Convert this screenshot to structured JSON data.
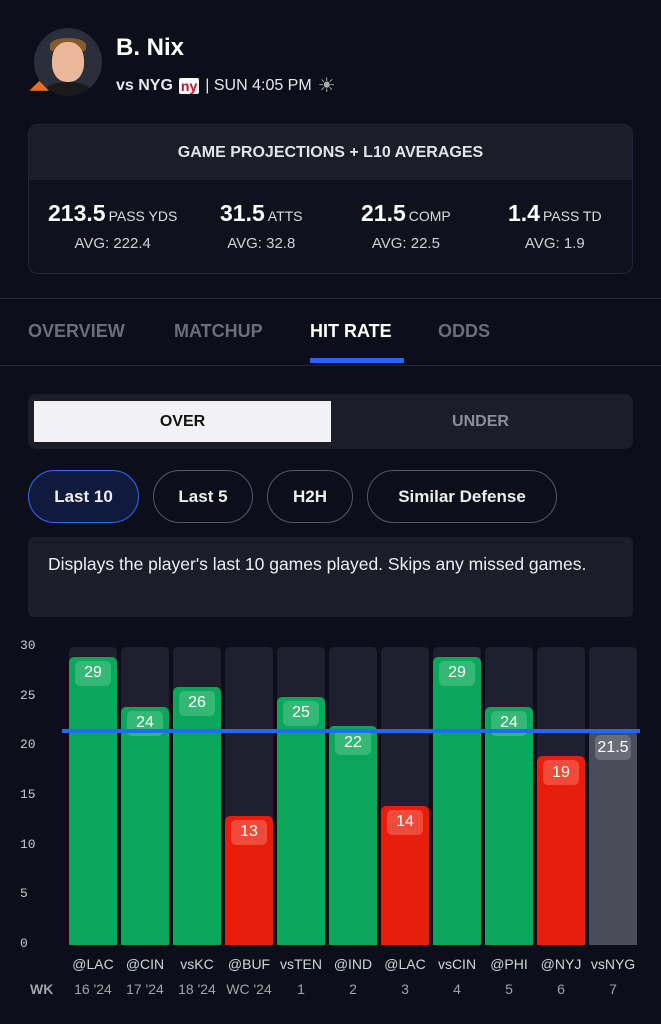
{
  "player": {
    "name": "B. Nix",
    "team_logo": "broncos-logo",
    "matchup": "vs NYG",
    "opp_logo": "ny",
    "game_time": "| SUN 4:05 PM",
    "weather_icon": "sun-icon"
  },
  "projections": {
    "title": "GAME PROJECTIONS + L10 AVERAGES",
    "stats": [
      {
        "value": "213.5",
        "unit": "PASS YDS",
        "avg": "AVG: 222.4"
      },
      {
        "value": "31.5",
        "unit": "ATTS",
        "avg": "AVG: 32.8"
      },
      {
        "value": "21.5",
        "unit": "COMP",
        "avg": "AVG: 22.5"
      },
      {
        "value": "1.4",
        "unit": "PASS TD",
        "avg": "AVG: 1.9"
      }
    ]
  },
  "tabs": [
    "OVERVIEW",
    "MATCHUP",
    "HIT RATE",
    "ODDS"
  ],
  "active_tab": "HIT RATE",
  "segment": {
    "over": "OVER",
    "under": "UNDER",
    "selected": "OVER"
  },
  "filters": [
    "Last 10",
    "Last 5",
    "H2H",
    "Similar Defense"
  ],
  "active_filter": "Last 10",
  "description": "Displays the player's last 10 games played. Skips any missed games.",
  "colors": {
    "over": "#0aa75a",
    "under": "#e81d0c",
    "projection": "#4a4c5a",
    "line": "#1f6bff"
  },
  "chart_data": {
    "type": "bar",
    "ylim": [
      0,
      30
    ],
    "yticks": [
      "0",
      "5",
      "10",
      "15",
      "20",
      "25",
      "30"
    ],
    "line_value": 21.5,
    "wk_label": "WK",
    "categories": [
      "@LAC",
      "@CIN",
      "vsKC",
      "@BUF",
      "vsTEN",
      "@IND",
      "@LAC",
      "vsCIN",
      "@PHI",
      "@NYJ",
      "vsNYG"
    ],
    "weeks": [
      "16 '24",
      "17 '24",
      "18 '24",
      "WC '24",
      "1",
      "2",
      "3",
      "4",
      "5",
      "6",
      "7"
    ],
    "values": [
      29,
      24,
      26,
      13,
      25,
      22,
      14,
      29,
      24,
      19,
      21.5
    ],
    "labels": [
      "29",
      "24",
      "26",
      "13",
      "25",
      "22",
      "14",
      "29",
      "24",
      "19",
      "21.5"
    ],
    "status": [
      "over",
      "over",
      "over",
      "under",
      "over",
      "over",
      "under",
      "over",
      "over",
      "under",
      "projection"
    ]
  }
}
